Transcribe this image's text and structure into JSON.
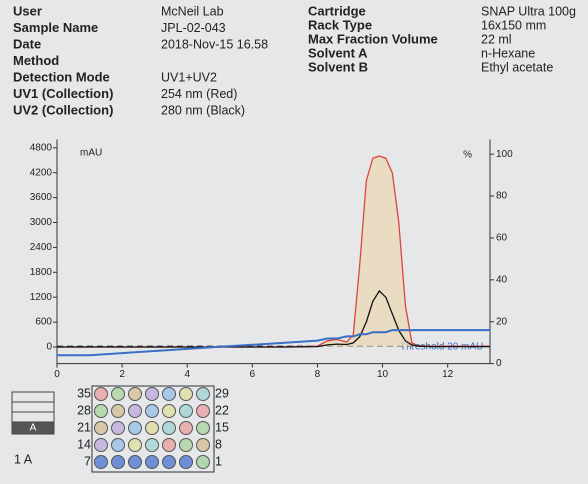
{
  "info": {
    "left": [
      {
        "label": "User",
        "value": "McNeil Lab"
      },
      {
        "label": "Sample Name",
        "value": "JPL-02-043"
      },
      {
        "label": "Date",
        "value": "2018-Nov-15 16.58"
      },
      {
        "label": "Method"
      },
      {
        "label": "Detection Mode",
        "value": "UV1+UV2"
      },
      {
        "label": "UV1 (Collection)",
        "value": "254 nm (Red)"
      },
      {
        "label": "UV2 (Collection)",
        "value": "280 nm (Black)"
      }
    ],
    "right": [
      {
        "label": "Cartridge",
        "value": "SNAP Ultra 100g"
      },
      {
        "label": "Rack Type",
        "value": "16x150 mm"
      },
      {
        "label": "Max Fraction Volume",
        "value": "22 ml"
      },
      {
        "label": "Solvent A",
        "value": "n-Hexane"
      },
      {
        "label": "Solvent B",
        "value": "Ethyl acetate"
      }
    ]
  },
  "chart_data": {
    "type": "line",
    "y_label": "mAU",
    "y2_label": "%",
    "annotation": "Threshold 20 mAU",
    "threshold": 20,
    "x": [
      0,
      1,
      2,
      3,
      4,
      5,
      6,
      7,
      8,
      8.3,
      8.6,
      8.9,
      9.1,
      9.3,
      9.5,
      9.7,
      9.9,
      10.1,
      10.3,
      10.5,
      10.7,
      10.9,
      11.1,
      11.5,
      12,
      13.3
    ],
    "xlim": [
      0,
      13.3
    ],
    "xticks": [
      0,
      2,
      4,
      6,
      8,
      10,
      12
    ],
    "ylim": [
      -400,
      5000
    ],
    "yticks": [
      0,
      600,
      1200,
      1800,
      2400,
      3000,
      3600,
      4200,
      4800
    ],
    "y2lim": [
      0,
      107
    ],
    "y2ticks": [
      0,
      20,
      40,
      60,
      80,
      100
    ],
    "series": [
      {
        "name": "UV1",
        "color": "#d9463f",
        "values": [
          0,
          0,
          0,
          0,
          0,
          0,
          0,
          0,
          20,
          150,
          180,
          120,
          300,
          2000,
          4000,
          4550,
          4600,
          4550,
          4200,
          3000,
          1000,
          100,
          30,
          20,
          20,
          20
        ]
      },
      {
        "name": "UV2",
        "color": "#111111",
        "values": [
          0,
          0,
          0,
          0,
          0,
          0,
          0,
          0,
          10,
          50,
          70,
          60,
          100,
          250,
          600,
          1100,
          1350,
          1200,
          800,
          400,
          150,
          50,
          20,
          10,
          10,
          10
        ]
      },
      {
        "name": "Solvent B",
        "color": "#3a6fc4",
        "axis": "y2",
        "values": [
          4,
          4,
          5,
          6,
          7,
          8,
          9,
          10,
          11,
          12,
          12,
          13,
          13,
          14,
          14,
          15,
          15,
          15,
          16,
          16,
          16,
          16,
          16,
          16,
          16,
          16
        ]
      }
    ]
  },
  "rack": {
    "left_labels": [
      "35",
      "28",
      "21",
      "14",
      "7"
    ],
    "right_labels": [
      "29",
      "22",
      "15",
      "8",
      "1"
    ],
    "tray": "A",
    "tray_label": "1 A"
  }
}
